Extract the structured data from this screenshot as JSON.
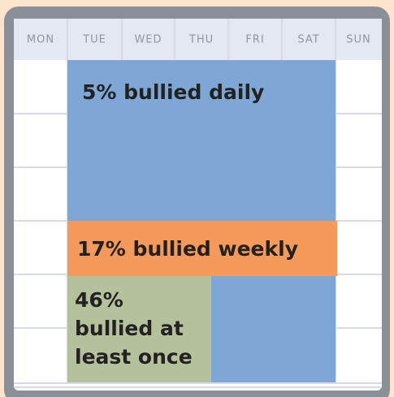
{
  "days": [
    "MON",
    "TUE",
    "WED",
    "THU",
    "FRI",
    "SAT",
    "SUN"
  ],
  "blocks": {
    "daily": "5% bullied daily",
    "weekly": "17% bullied weekly",
    "once": [
      "46%",
      "bullied at",
      "least once"
    ]
  }
}
